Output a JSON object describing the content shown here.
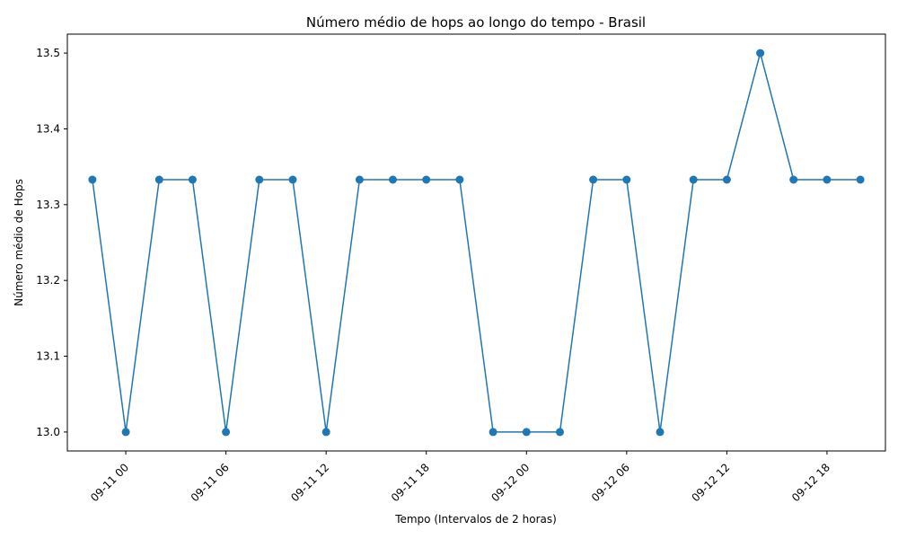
{
  "chart_data": {
    "type": "line",
    "title": "Número médio de hops ao longo do tempo - Brasil",
    "xlabel": "Tempo (Intervalos de 2 horas)",
    "ylabel": "Número médio de Hops",
    "x_ticks": [
      "09-11 00",
      "09-11 06",
      "09-11 12",
      "09-11 18",
      "09-12 00",
      "09-12 06",
      "09-12 12",
      "09-12 18"
    ],
    "y_ticks": [
      "13.0",
      "13.1",
      "13.2",
      "13.3",
      "13.4",
      "13.5"
    ],
    "grid": false,
    "legend": "none",
    "series": [
      {
        "color": "#1f77b4",
        "marker": "circle",
        "x": [
          "09-10 22:00",
          "09-11 00:00",
          "09-11 02:00",
          "09-11 04:00",
          "09-11 06:00",
          "09-11 08:00",
          "09-11 10:00",
          "09-11 12:00",
          "09-11 14:00",
          "09-11 16:00",
          "09-11 18:00",
          "09-11 20:00",
          "09-11 22:00",
          "09-12 00:00",
          "09-12 02:00",
          "09-12 04:00",
          "09-12 06:00",
          "09-12 08:00",
          "09-12 10:00",
          "09-12 12:00",
          "09-12 14:00",
          "09-12 16:00",
          "09-12 18:00",
          "09-12 20:00"
        ],
        "values": [
          13.333,
          13.0,
          13.333,
          13.333,
          13.0,
          13.333,
          13.333,
          13.0,
          13.333,
          13.333,
          13.333,
          13.333,
          13.0,
          13.0,
          13.0,
          13.333,
          13.333,
          13.0,
          13.333,
          13.333,
          13.5,
          13.333,
          13.333,
          13.333
        ]
      }
    ]
  }
}
